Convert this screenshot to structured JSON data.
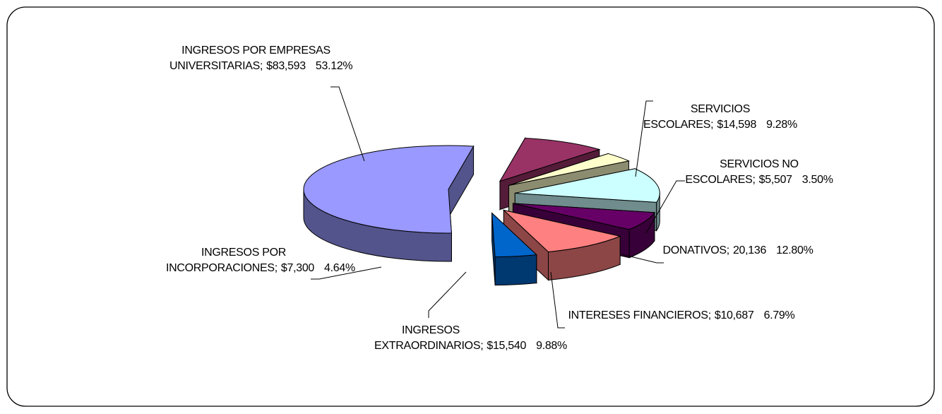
{
  "chart_data": {
    "type": "pie",
    "categories": [
      "SERVICIOS ESCOLARES;",
      "SERVICIOS NO ESCOLARES;",
      "DONATIVOS;",
      "INTERESES FINANCIEROS;",
      "INGRESOS EXTRAORDINARIOS;",
      "INGRESOS POR INCORPORACIONES;",
      "INGRESOS POR EMPRESAS UNIVERSITARIAS;"
    ],
    "values": [
      14598,
      5507,
      20136,
      10687,
      15540,
      7300,
      83593
    ],
    "value_labels": [
      "$14,598",
      "$5,507",
      "20,136",
      "$10,687",
      "$15,540",
      "$7,300",
      "$83,593"
    ],
    "percents": [
      9.28,
      3.5,
      12.8,
      6.79,
      9.88,
      4.64,
      53.12
    ],
    "percent_labels": [
      "9.28%",
      "3.50%",
      "12.80%",
      "6.79%",
      "9.88%",
      "4.64%",
      "53.12%"
    ],
    "colors": [
      "#993366",
      "#ffffcc",
      "#ccffff",
      "#660066",
      "#ff8080",
      "#0066cc",
      "#9999ff"
    ],
    "exploded": true,
    "three_d": true
  }
}
